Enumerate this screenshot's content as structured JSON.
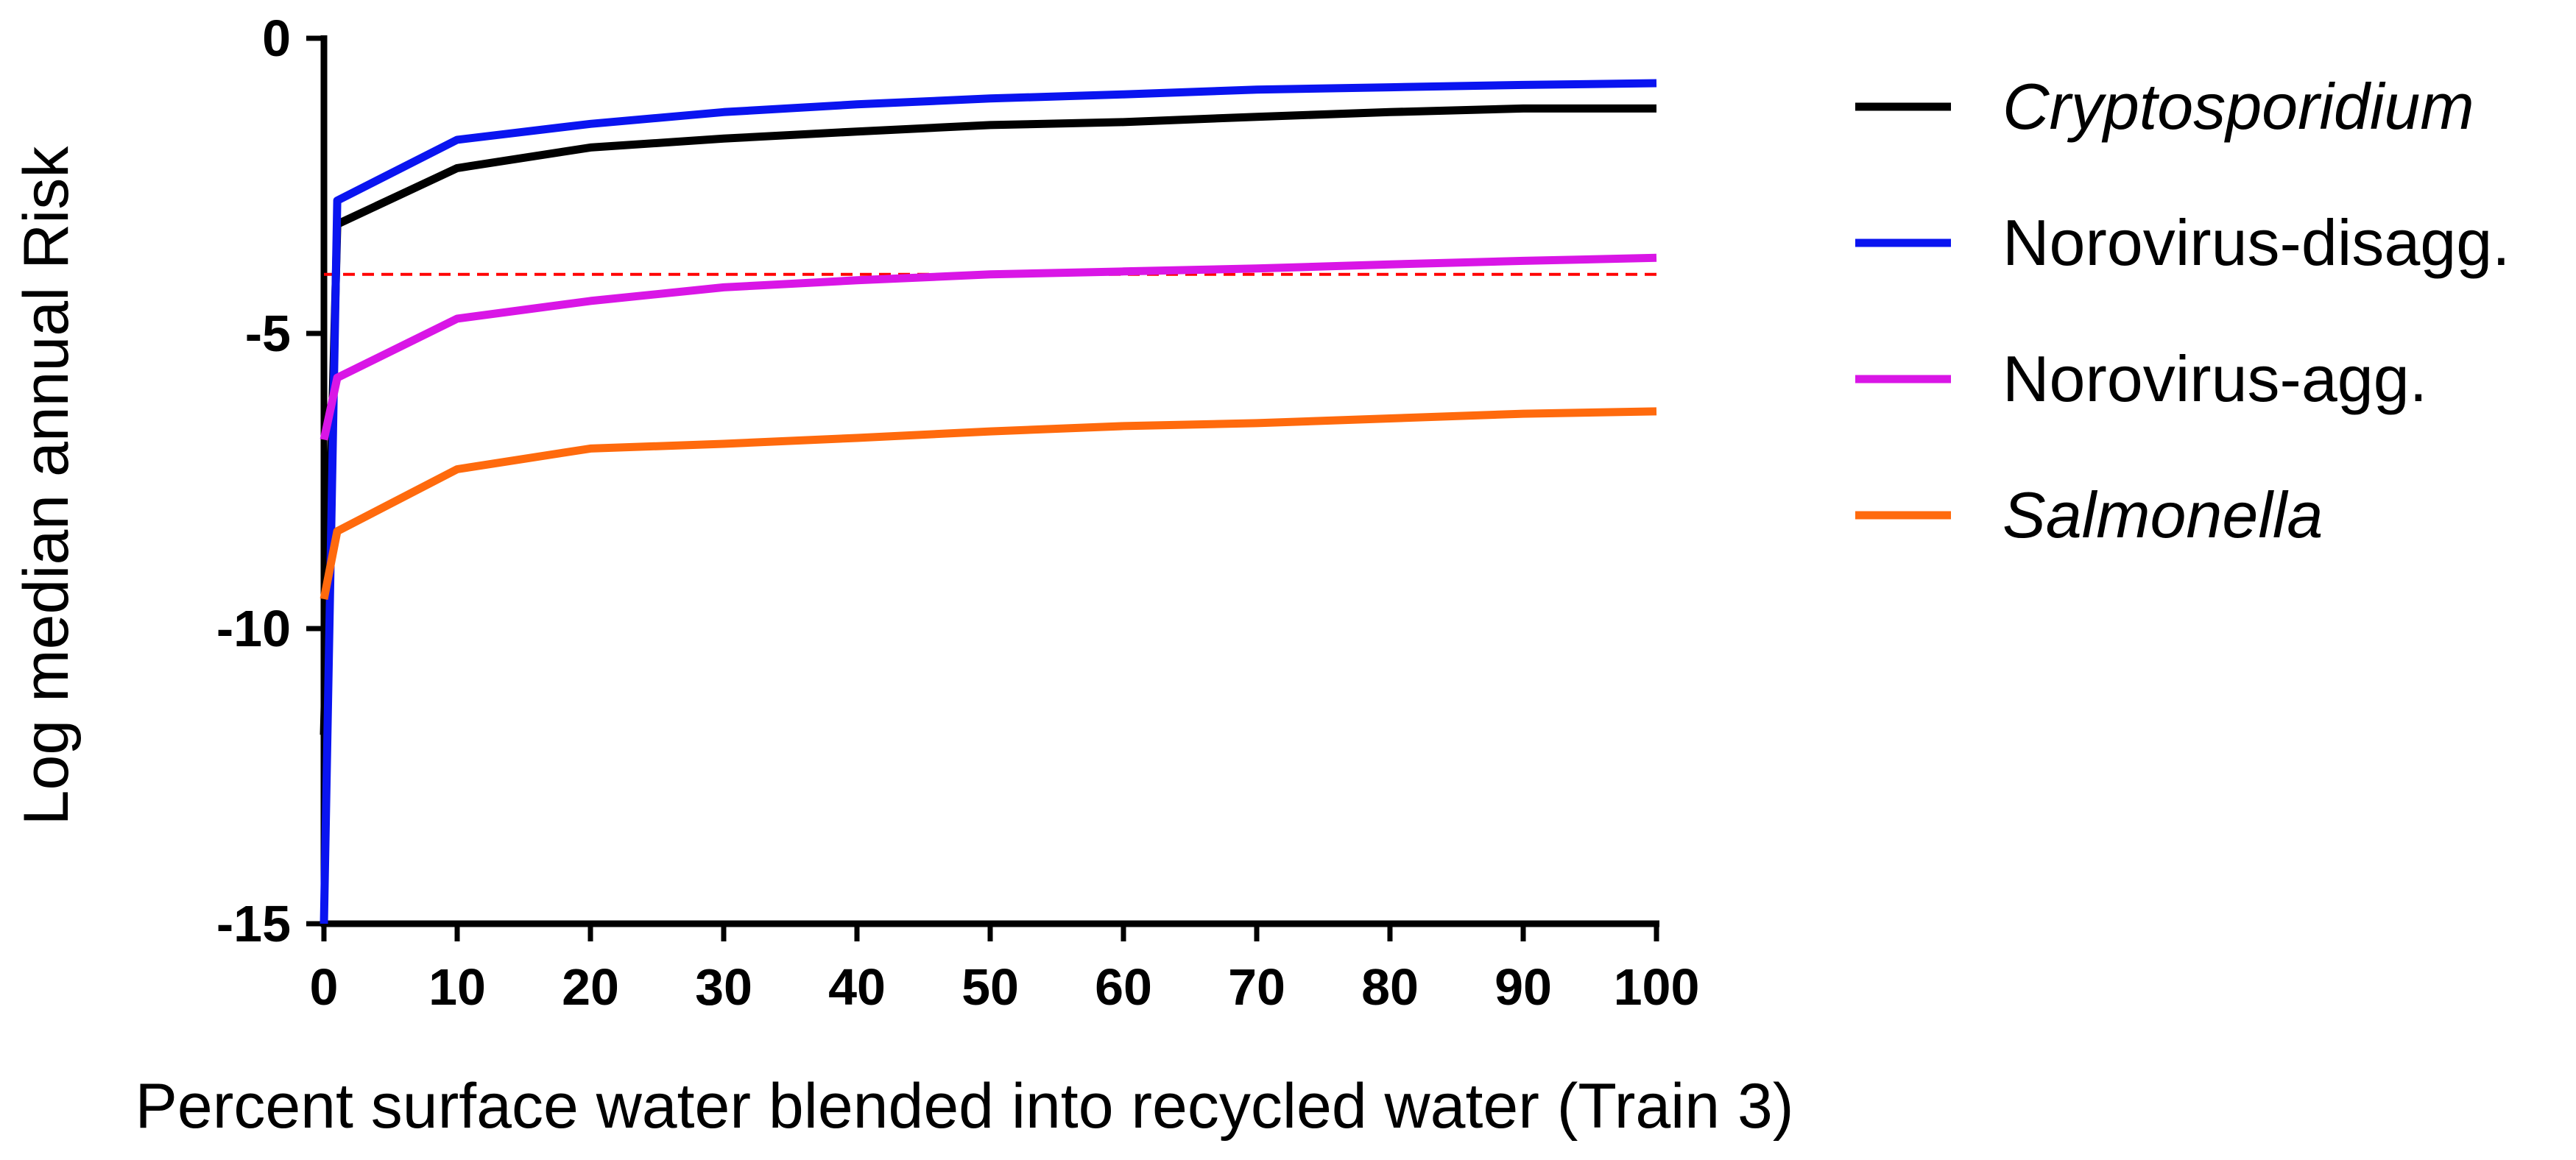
{
  "chart_data": {
    "type": "line",
    "title": "",
    "xlabel": "Percent surface water blended into recycled water (Train 3)",
    "ylabel": "Log median annual  Risk",
    "xlim": [
      0,
      100
    ],
    "ylim": [
      -15,
      0
    ],
    "xticks": [
      0,
      10,
      20,
      30,
      40,
      50,
      60,
      70,
      80,
      90,
      100
    ],
    "xtick_labels": [
      "0",
      "10",
      "20",
      "30",
      "40",
      "50",
      "60",
      "70",
      "80",
      "90",
      "100"
    ],
    "yticks": [
      0,
      -5,
      -10,
      -15
    ],
    "ytick_labels": [
      "0",
      "-5",
      "-10",
      "-15"
    ],
    "grid": false,
    "legend_position": "right",
    "x": [
      0,
      1,
      10,
      20,
      30,
      40,
      50,
      60,
      70,
      80,
      90,
      100
    ],
    "series": [
      {
        "name": "Cryptosporidium",
        "italic": true,
        "color": "#000000",
        "values": [
          -11.8,
          -3.15,
          -2.2,
          -1.85,
          -1.7,
          -1.58,
          -1.47,
          -1.42,
          -1.33,
          -1.25,
          -1.19,
          -1.19
        ]
      },
      {
        "name": "Norovirus-disagg.",
        "italic": false,
        "color": "#0a14f0",
        "values": [
          -15,
          -2.75,
          -1.72,
          -1.45,
          -1.25,
          -1.12,
          -1.02,
          -0.95,
          -0.87,
          -0.83,
          -0.79,
          -0.76
        ]
      },
      {
        "name": "Norovirus-agg.",
        "italic": false,
        "color": "#d916e6",
        "values": [
          -6.8,
          -5.75,
          -4.75,
          -4.45,
          -4.22,
          -4.1,
          -4.0,
          -3.95,
          -3.9,
          -3.83,
          -3.77,
          -3.72
        ]
      },
      {
        "name": "Salmonella",
        "italic": true,
        "color": "#ff6a0d",
        "values": [
          -9.5,
          -8.35,
          -7.3,
          -6.95,
          -6.87,
          -6.77,
          -6.66,
          -6.57,
          -6.52,
          -6.44,
          -6.36,
          -6.32
        ]
      }
    ],
    "reference_line": {
      "y": -4,
      "color": "#ff0000",
      "style": "dashed"
    }
  }
}
